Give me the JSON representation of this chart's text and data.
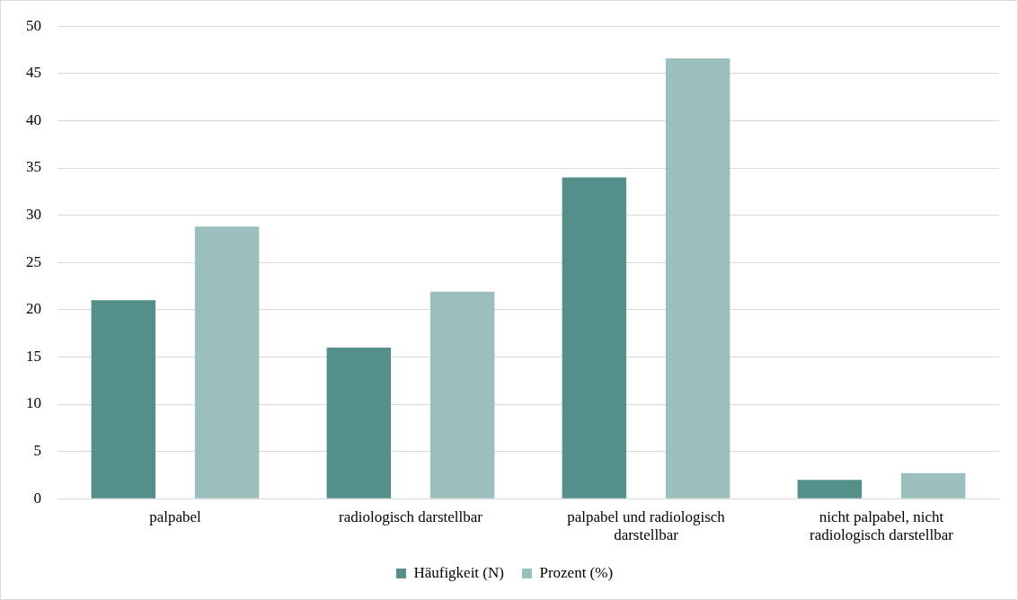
{
  "chart_data": {
    "type": "bar",
    "categories": [
      "palpabel",
      "radiologisch darstellbar",
      "palpabel und radiologisch darstellbar",
      "nicht palpabel, nicht radiologisch darstellbar"
    ],
    "series": [
      {
        "name": "Häufigkeit (N)",
        "color": "#548f8a",
        "values": [
          21,
          16,
          34,
          2
        ]
      },
      {
        "name": "Prozent (%)",
        "color": "#9bbfbc",
        "values": [
          28.8,
          21.9,
          46.6,
          2.7
        ]
      }
    ],
    "ylim": [
      0,
      50
    ],
    "yticks": [
      0,
      5,
      10,
      15,
      20,
      25,
      30,
      35,
      40,
      45,
      50
    ],
    "grid": "y",
    "legend": "bottom"
  }
}
